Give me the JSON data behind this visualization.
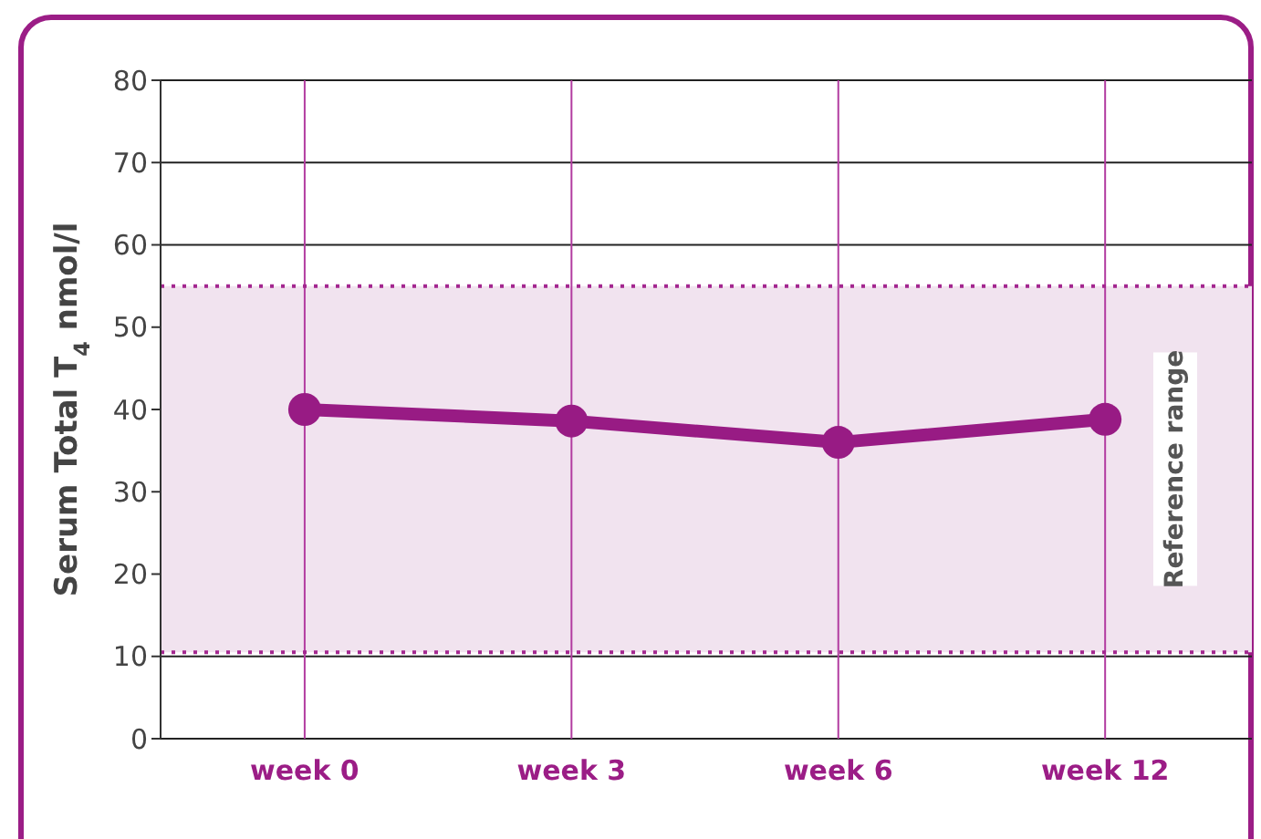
{
  "chart_data": {
    "type": "line",
    "ylabel": "Serum Total T$_{4}$ nmol/l",
    "categories": [
      "week 0",
      "week 3",
      "week 6",
      "week 12"
    ],
    "series": [
      {
        "color": "#981b84",
        "values": [
          40,
          38.6,
          36,
          38.8
        ]
      }
    ],
    "ylim": [
      0,
      80
    ],
    "yticks": [
      0,
      10,
      20,
      30,
      40,
      50,
      60,
      70,
      80
    ],
    "grid": true,
    "marker": "circle",
    "line_style": "solid",
    "bands": [
      {
        "axis": "y",
        "from": 10.5,
        "to": 55,
        "label": "Reference range",
        "color": "#f1e3ef"
      }
    ],
    "ref_lines": [
      {
        "axis": "y",
        "value": 10.5,
        "color": "#a3268f",
        "line_style": "dotted"
      },
      {
        "axis": "y",
        "value": 55,
        "color": "#a3268f",
        "line_style": "dotted"
      }
    ]
  }
}
